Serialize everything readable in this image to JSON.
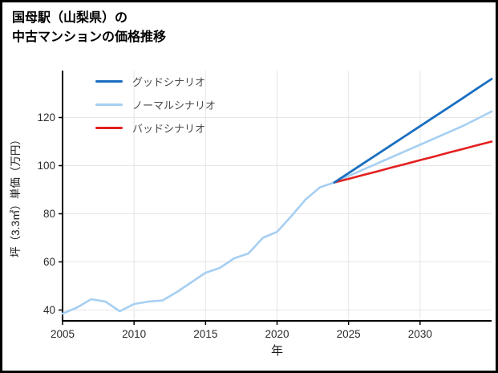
{
  "title": {
    "line1": "国母駅（山梨県）の",
    "line2": "中古マンションの価格推移"
  },
  "legend": [
    {
      "label": "グッドシナリオ",
      "color": "#1a6fc0"
    },
    {
      "label": "ノーマルシナリオ",
      "color": "#a6cff2"
    },
    {
      "label": "バッドシナリオ",
      "color": "#e32020"
    }
  ],
  "chart_data": {
    "type": "line",
    "title": "国母駅（山梨県）の中古マンションの価格推移",
    "xlabel": "年",
    "ylabel": "坪（3.3㎡）単価（万円）",
    "xlim": [
      2005,
      2035
    ],
    "ylim": [
      35.5,
      139.5
    ],
    "x_ticks": [
      2005,
      2010,
      2015,
      2020,
      2025,
      2030
    ],
    "y_ticks": [
      40,
      60,
      80,
      100,
      120
    ],
    "grid": true,
    "legend_position": "upper-left",
    "series": [
      {
        "name": "ノーマルシナリオ",
        "key": "normal-scenario-line",
        "color": "#a6cff2",
        "width": 2.6,
        "x": [
          2005,
          2006,
          2007,
          2008,
          2009,
          2010,
          2011,
          2012,
          2013,
          2014,
          2015,
          2016,
          2017,
          2018,
          2019,
          2020,
          2021,
          2022,
          2023,
          2024,
          2025,
          2026,
          2027,
          2028,
          2029,
          2030,
          2031,
          2032,
          2033,
          2034,
          2035
        ],
        "y": [
          38.5,
          41,
          44.5,
          43.5,
          39.5,
          42.5,
          43.5,
          44,
          47.5,
          51.5,
          55.5,
          57.5,
          61.5,
          63.5,
          70,
          72.5,
          79,
          86,
          91,
          93,
          95.7,
          98.3,
          100.9,
          103.5,
          106.1,
          108.7,
          111.3,
          113.9,
          116.5,
          119.5,
          122.5
        ]
      },
      {
        "name": "バッドシナリオ",
        "key": "bad-scenario-line",
        "color": "#e32020",
        "width": 2.6,
        "x": [
          2024,
          2025,
          2026,
          2027,
          2028,
          2029,
          2030,
          2031,
          2032,
          2033,
          2034,
          2035
        ],
        "y": [
          93,
          94.5,
          96.1,
          97.6,
          99.2,
          100.7,
          102.3,
          103.8,
          105.4,
          106.9,
          108.5,
          110
        ]
      },
      {
        "name": "グッドシナリオ",
        "key": "good-scenario-line",
        "color": "#1a6fc0",
        "width": 2.8,
        "x": [
          2024,
          2025,
          2026,
          2027,
          2028,
          2029,
          2030,
          2031,
          2032,
          2033,
          2034,
          2035
        ],
        "y": [
          93,
          96.9,
          100.8,
          104.7,
          108.6,
          112.5,
          116.4,
          120.3,
          124.2,
          128.1,
          132.1,
          136
        ]
      }
    ]
  }
}
